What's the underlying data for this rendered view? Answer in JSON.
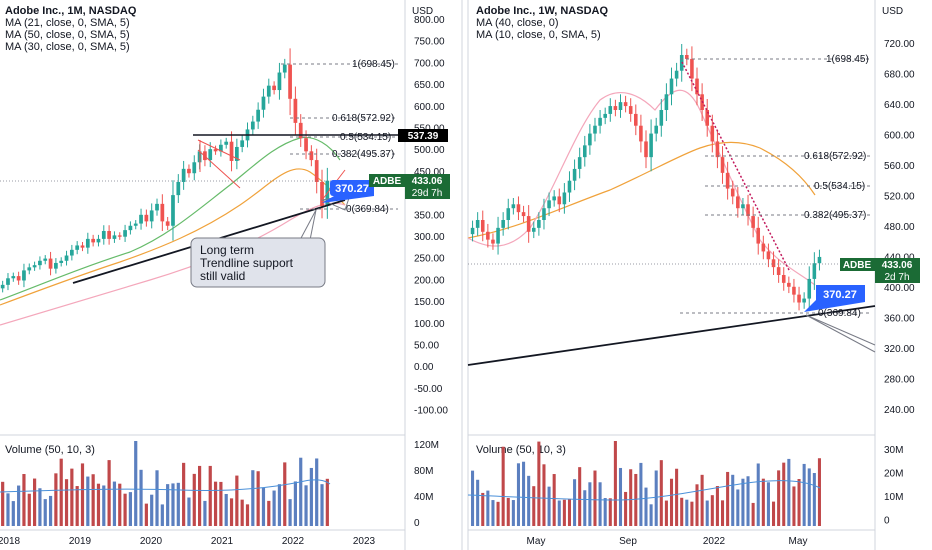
{
  "panes": [
    {
      "title": "Adobe Inc., 1M, NASDAQ",
      "indicators": [
        "MA (21, close, 0, SMA, 5)",
        "MA (50, close, 0, SMA, 5)",
        "MA (30, close, 0, SMA, 5)"
      ],
      "currency": "USD",
      "price_ticks": [
        "800.00",
        "750.00",
        "700.00",
        "650.00",
        "600.00",
        "550.00",
        "500.00",
        "450.00",
        "400.00",
        "350.00",
        "300.00",
        "250.00",
        "200.00",
        "150.00",
        "100.00",
        "50.00",
        "0.00",
        "-50.00",
        "-100.00"
      ],
      "time_labels": [
        "2018",
        "2019",
        "2020",
        "2021",
        "2022",
        "2023"
      ],
      "fib_labels": [
        "1(698.45)",
        "0.618(572.92)",
        "0.5(534.15)",
        "0.382(495.37)",
        "0(369.84)"
      ],
      "level_badge": "537.39",
      "price_badge": "370.27",
      "ticker": "ADBE",
      "last_price": "433.06",
      "countdown": "29d 7h",
      "annotation": [
        "Long term",
        "Trendline support",
        "still valid"
      ],
      "volume_title": "Volume (50, 10, 3)",
      "volume_ticks": [
        "120M",
        "80M",
        "40M",
        "0"
      ],
      "colors": {
        "up": "#26a69a",
        "down": "#ef5350",
        "up_vol": "#5b7fbf",
        "down_vol": "#c0484a",
        "ma1": "#f0a23b",
        "ma2": "#f4a7bb",
        "ma3": "#66bb6a",
        "badge": "#2962ff",
        "ticker_bg": "#1b6b35"
      }
    },
    {
      "title": "Adobe Inc., 1W, NASDAQ",
      "indicators": [
        "MA (40, close, 0)",
        "MA (10, close, 0, SMA, 5)"
      ],
      "currency": "USD",
      "price_ticks": [
        "720.00",
        "680.00",
        "640.00",
        "600.00",
        "560.00",
        "520.00",
        "480.00",
        "440.00",
        "400.00",
        "360.00",
        "320.00",
        "280.00",
        "240.00"
      ],
      "time_labels": [
        "May",
        "Sep",
        "2022",
        "May"
      ],
      "fib_labels": [
        "1(698.45)",
        "0.618(572.92)",
        "0.5(534.15)",
        "0.382(495.37)",
        "0(369.84)"
      ],
      "price_badge": "370.27",
      "ticker": "ADBE",
      "last_price": "433.06",
      "countdown": "2d 7h",
      "volume_title": "Volume (50, 10, 3)",
      "volume_ticks": [
        "30M",
        "20M",
        "10M",
        "0"
      ],
      "colors": {
        "up": "#26a69a",
        "down": "#ef5350",
        "ma40": "#f0a23b",
        "ma10": "#f4a7bb",
        "badge": "#2962ff",
        "ticker_bg": "#1b6b35"
      }
    }
  ],
  "chart_data": [
    {
      "type": "candlestick",
      "title": "Adobe Inc., 1M, NASDAQ",
      "ylim": [
        -100,
        800
      ],
      "x_range": [
        "2018",
        "2023"
      ],
      "fib_levels": {
        "1": 698.45,
        "0.618": 572.92,
        "0.5": 534.15,
        "0.382": 495.37,
        "0": 369.84
      },
      "series": [
        {
          "name": "close",
          "values": [
            195,
            210,
            215,
            205,
            228,
            235,
            240,
            250,
            255,
            232,
            245,
            250,
            262,
            275,
            285,
            280,
            300,
            292,
            300,
            318,
            300,
            308,
            305,
            320,
            330,
            335,
            355,
            340,
            365,
            380,
            340,
            330,
            400,
            430,
            460,
            450,
            475,
            500,
            480,
            505,
            500,
            515,
            522,
            478,
            510,
            525,
            550,
            568,
            595,
            625,
            650,
            640,
            680,
            698,
            620,
            565,
            530,
            500,
            480,
            430,
            375,
            433
          ]
        }
      ],
      "last_price": 433.06,
      "annotation_price": 370.27,
      "horizontal_level": 537.39
    },
    {
      "type": "candlestick",
      "title": "Adobe Inc., 1W, NASDAQ",
      "ylim": [
        200,
        760
      ],
      "x_range": [
        "2021-02",
        "2022-06"
      ],
      "fib_levels": {
        "1": 698.45,
        "0.618": 572.92,
        "0.5": 534.15,
        "0.382": 495.37,
        "0": 369.84
      },
      "series": [
        {
          "name": "close",
          "values": [
            470,
            480,
            465,
            455,
            450,
            470,
            480,
            495,
            500,
            490,
            485,
            465,
            470,
            480,
            495,
            505,
            510,
            500,
            515,
            530,
            545,
            560,
            575,
            590,
            600,
            610,
            615,
            625,
            620,
            630,
            625,
            615,
            600,
            580,
            560,
            590,
            600,
            620,
            640,
            660,
            670,
            690,
            685,
            660,
            640,
            620,
            600,
            580,
            560,
            540,
            520,
            510,
            495,
            500,
            485,
            470,
            450,
            440,
            430,
            420,
            410,
            400,
            395,
            385,
            375,
            380,
            405,
            425,
            433
          ]
        },
        {
          "name": "MA (40, close, 0)",
          "values": [
            470,
            470,
            472,
            475,
            480,
            485,
            492,
            500,
            510,
            520,
            530,
            540,
            552,
            565,
            578,
            588,
            592,
            588,
            580,
            568,
            552,
            536,
            520,
            505
          ]
        },
        {
          "name": "MA (10, close, 0, SMA, 5)",
          "values": [
            455,
            470,
            485,
            505,
            530,
            560,
            590,
            610,
            620,
            625,
            620,
            605,
            595,
            620,
            650,
            670,
            660,
            620,
            590,
            560,
            530,
            505,
            480,
            455,
            435,
            415,
            400,
            395,
            400,
            412
          ]
        }
      ],
      "last_price": 433.06,
      "annotation_price": 370.27
    }
  ]
}
